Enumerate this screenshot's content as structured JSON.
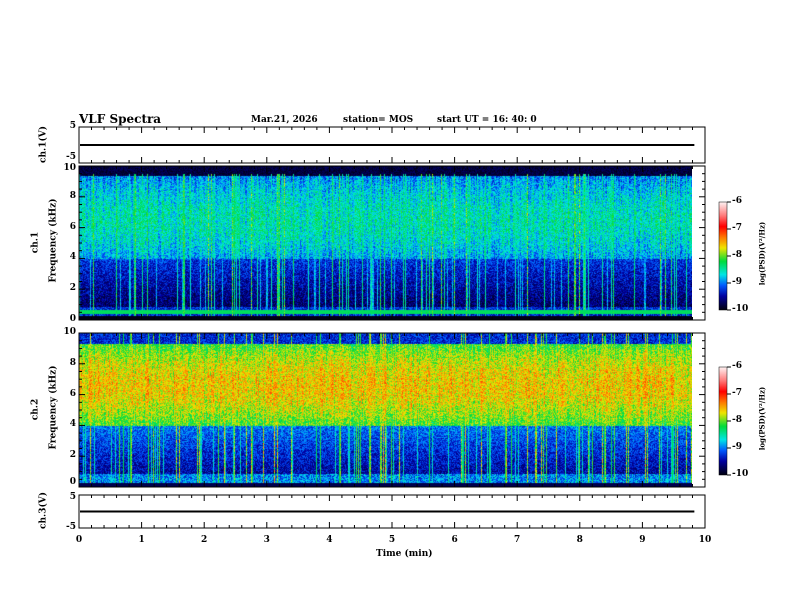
{
  "header": {
    "title": "VLF Spectra",
    "date": "Mar.21, 2026",
    "station": "station= MOS",
    "start": "start  UT =   16: 40: 0"
  },
  "chart_data": [
    {
      "type": "line",
      "name": "ch.1 waveform",
      "ylabel": "ch.1(V)",
      "ylim": [
        -5,
        5
      ],
      "yticks": [
        "5",
        "-5"
      ],
      "level": 0,
      "xlim": [
        0,
        10
      ]
    },
    {
      "type": "heatmap",
      "name": "ch.1 spectrogram",
      "ylabel": "ch.1\nFrequency (kHz)",
      "ylabel_ch": "ch.1",
      "ylabel_freq": "Frequency (kHz)",
      "ylim": [
        0,
        10
      ],
      "yticks": [
        "0",
        "2",
        "4",
        "6",
        "8",
        "10"
      ],
      "xlim": [
        0,
        10
      ],
      "data_end_min": 9.83,
      "dominant_band_khz": [
        4,
        9
      ],
      "peak_log_psd": -8.5,
      "colorbar": {
        "label": "log(PSD)(V²/Hz)",
        "range": [
          -10,
          -6
        ],
        "ticks": [
          "-6",
          "-7",
          "-8",
          "-9",
          "-10"
        ]
      }
    },
    {
      "type": "heatmap",
      "name": "ch.2 spectrogram",
      "ylabel_ch": "ch.2",
      "ylabel_freq": "Frequency (kHz)",
      "ylim": [
        0,
        10
      ],
      "yticks": [
        "0",
        "2",
        "4",
        "6",
        "8",
        "10"
      ],
      "xlim": [
        0,
        10
      ],
      "data_end_min": 9.83,
      "dominant_band_khz": [
        4,
        9
      ],
      "peak_log_psd": -7.2,
      "colorbar": {
        "label": "log(PSD)(V²/Hz)",
        "range": [
          -10,
          -6
        ],
        "ticks": [
          "-6",
          "-7",
          "-8",
          "-9",
          "-10"
        ]
      }
    },
    {
      "type": "line",
      "name": "ch.3 waveform",
      "ylabel": "ch.3(V)",
      "ylim": [
        -5,
        5
      ],
      "yticks": [
        "5",
        "-5"
      ],
      "level": 0,
      "xlim": [
        0,
        10
      ]
    }
  ],
  "xaxis": {
    "label": "Time  (min)",
    "ticks": [
      "0",
      "1",
      "2",
      "3",
      "4",
      "5",
      "6",
      "7",
      "8",
      "9",
      "10"
    ]
  },
  "colors": {
    "background": "#ffffff",
    "axis": "#000000"
  }
}
